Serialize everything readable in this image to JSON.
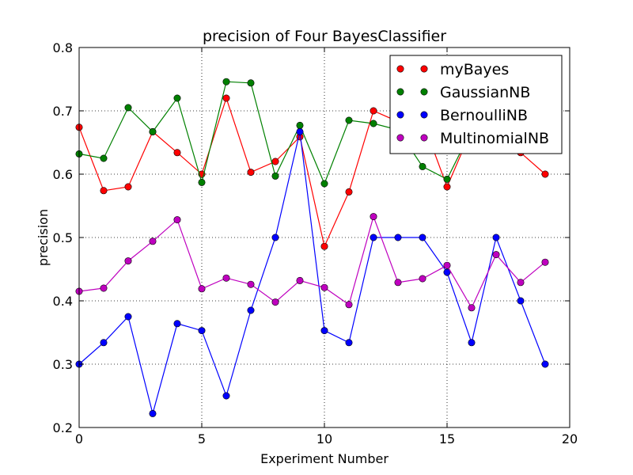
{
  "chart_data": {
    "type": "line",
    "title": "precision of Four BayesClassifier",
    "xlabel": "Experiment Number",
    "ylabel": "precision",
    "xlim": [
      0,
      20
    ],
    "ylim": [
      0.2,
      0.8
    ],
    "xticks": [
      0,
      5,
      10,
      15,
      20
    ],
    "yticks": [
      0.2,
      0.3,
      0.4,
      0.5,
      0.6,
      0.7,
      0.8
    ],
    "xtick_labels": [
      "0",
      "5",
      "10",
      "15",
      "20"
    ],
    "ytick_labels": [
      "0.2",
      "0.3",
      "0.4",
      "0.5",
      "0.6",
      "0.7",
      "0.8"
    ],
    "grid": true,
    "legend_position": "top-right",
    "x": [
      0,
      1,
      2,
      3,
      4,
      5,
      6,
      7,
      8,
      9,
      10,
      11,
      12,
      13,
      14,
      15,
      16,
      17,
      18,
      19
    ],
    "series": [
      {
        "name": "myBayes",
        "color": "#ff0000",
        "values": [
          0.674,
          0.574,
          0.58,
          0.667,
          0.634,
          0.6,
          0.72,
          0.603,
          0.62,
          0.659,
          0.486,
          0.572,
          0.7,
          0.683,
          0.685,
          0.58,
          0.67,
          0.66,
          0.634,
          0.6
        ]
      },
      {
        "name": "GaussianNB",
        "color": "#008000",
        "values": [
          0.632,
          0.625,
          0.705,
          0.667,
          0.72,
          0.587,
          0.746,
          0.744,
          0.597,
          0.677,
          0.585,
          0.685,
          0.68,
          0.67,
          0.612,
          0.592,
          0.67,
          0.67,
          0.66,
          0.66
        ]
      },
      {
        "name": "BernoulliNB",
        "color": "#0000ff",
        "values": [
          0.3,
          0.334,
          0.375,
          0.222,
          0.364,
          0.353,
          0.25,
          0.385,
          0.5,
          0.667,
          0.353,
          0.334,
          0.5,
          0.5,
          0.5,
          0.445,
          0.334,
          0.5,
          0.4,
          0.3
        ]
      },
      {
        "name": "MultinomialNB",
        "color": "#bf00bf",
        "values": [
          0.415,
          0.42,
          0.463,
          0.494,
          0.528,
          0.419,
          0.436,
          0.426,
          0.398,
          0.432,
          0.421,
          0.394,
          0.533,
          0.429,
          0.435,
          0.456,
          0.389,
          0.473,
          0.429,
          0.461
        ]
      }
    ]
  }
}
